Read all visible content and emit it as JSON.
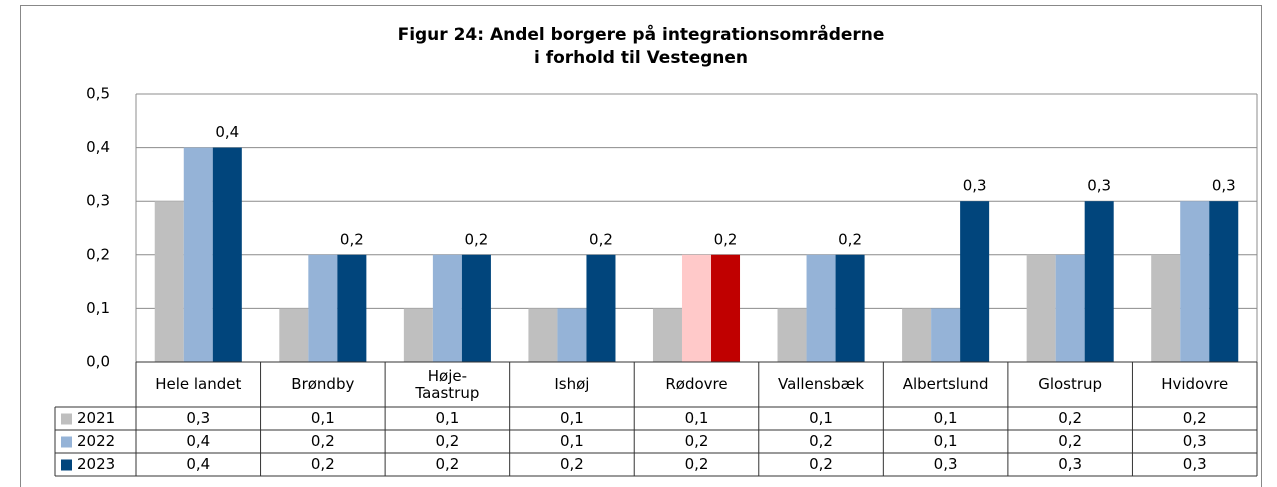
{
  "chart_data": {
    "type": "bar",
    "title": "Figur 24: Andel borgere på integrationsområderne\ni forhold til Vestegnen",
    "categories": [
      "Hele landet",
      "Brøndby",
      "Høje-\nTaastrup",
      "Ishøj",
      "Rødovre",
      "Vallensbæk",
      "Albertslund",
      "Glostrup",
      "Hvidovre"
    ],
    "series": [
      {
        "name": "2021",
        "color": "#bfbfbf",
        "highlight_color": "#bfbfbf",
        "values": [
          0.3,
          0.1,
          0.1,
          0.1,
          0.1,
          0.1,
          0.1,
          0.2,
          0.2
        ],
        "value_labels": [
          "0,3",
          "0,1",
          "0,1",
          "0,1",
          "0,1",
          "0,1",
          "0,1",
          "0,2",
          "0,2"
        ]
      },
      {
        "name": "2022",
        "color": "#95b3d7",
        "highlight_color": "#ffc9c9",
        "values": [
          0.4,
          0.2,
          0.2,
          0.1,
          0.2,
          0.2,
          0.1,
          0.2,
          0.3
        ],
        "value_labels": [
          "0,4",
          "0,2",
          "0,2",
          "0,1",
          "0,2",
          "0,2",
          "0,1",
          "0,2",
          "0,3"
        ]
      },
      {
        "name": "2023",
        "color": "#01457c",
        "highlight_color": "#c00000",
        "data_labels": true,
        "values": [
          0.4,
          0.2,
          0.2,
          0.2,
          0.2,
          0.2,
          0.3,
          0.3,
          0.3
        ],
        "value_labels": [
          "0,4",
          "0,2",
          "0,2",
          "0,2",
          "0,2",
          "0,2",
          "0,3",
          "0,3",
          "0,3"
        ]
      }
    ],
    "highlight_category": "Rødovre",
    "ylim": [
      0,
      0.5
    ],
    "yticks": [
      {
        "value": 0,
        "label": "0,0"
      },
      {
        "value": 0.1,
        "label": "0,1"
      },
      {
        "value": 0.2,
        "label": "0,2"
      },
      {
        "value": 0.3,
        "label": "0,3"
      },
      {
        "value": 0.4,
        "label": "0,4"
      },
      {
        "value": 0.5,
        "label": "0,5"
      }
    ],
    "grid": true,
    "data_table": true
  }
}
